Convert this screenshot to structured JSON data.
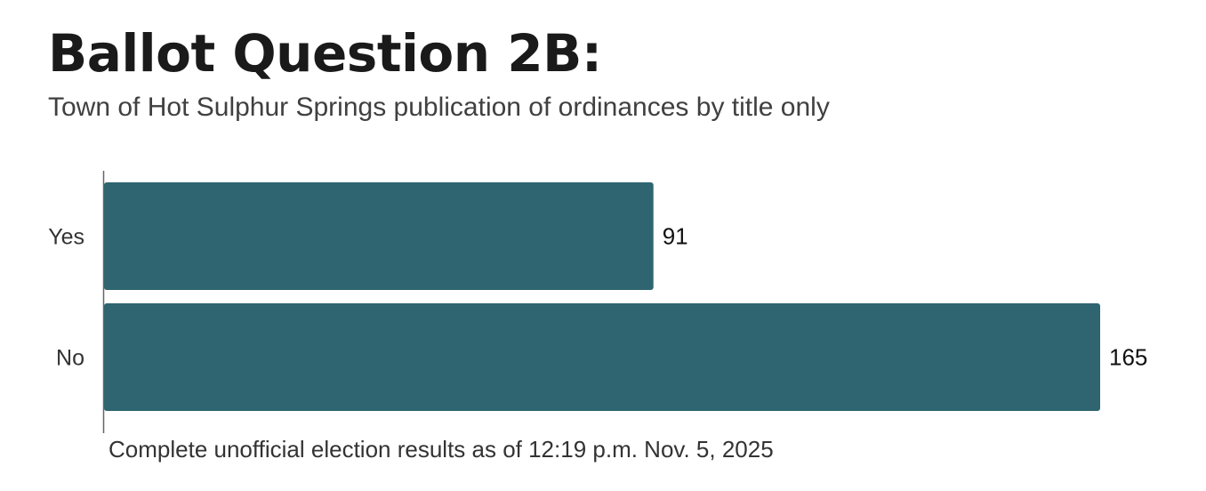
{
  "chart_data": {
    "type": "bar",
    "orientation": "horizontal",
    "title": "Ballot Question 2B:",
    "subtitle": "Town of Hot Sulphur Springs publication of ordinances by title only",
    "categories": [
      "Yes",
      "No"
    ],
    "values": [
      91,
      165
    ],
    "value_labels": [
      "91",
      "165"
    ],
    "xlim": [
      0,
      165
    ],
    "grid": false,
    "legend": "none",
    "bar_color": "#2e6571",
    "notes": "Complete unofficial election results as of 12:19 p.m. Nov. 5, 2025"
  }
}
